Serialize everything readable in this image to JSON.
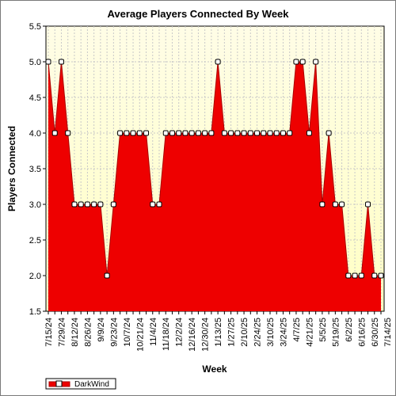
{
  "chart_data": {
    "type": "area",
    "title": "Average Players Connected By Week",
    "xlabel": "Week",
    "ylabel": "Players Connected",
    "ylim": [
      1.5,
      5.5
    ],
    "yticks": [
      "1.5",
      "2.0",
      "2.5",
      "3.0",
      "3.5",
      "4.0",
      "4.5",
      "5.0",
      "5.5"
    ],
    "grid": true,
    "legend_position": "bottom-left",
    "colors": {
      "fill": "#ee0000",
      "line": "#aa0000",
      "plot_bg_top": "#fffde0",
      "plot_bg_bottom": "#ffffcc",
      "grid": "#c8c8c8",
      "marker_fill": "#ffffff"
    },
    "x_labels": [
      "7/15/24",
      "7/29/24",
      "8/12/24",
      "8/26/24",
      "9/9/24",
      "9/23/24",
      "10/7/24",
      "10/21/24",
      "11/4/24",
      "11/18/24",
      "12/2/24",
      "12/16/24",
      "12/30/24",
      "1/13/25",
      "1/27/25",
      "2/10/25",
      "2/24/25",
      "3/10/25",
      "3/24/25",
      "4/7/25",
      "4/21/25",
      "5/5/25",
      "5/19/25",
      "6/2/25",
      "6/16/25",
      "6/30/25",
      "7/14/25"
    ],
    "series": [
      {
        "name": "DarkWind",
        "values": [
          5,
          4,
          5,
          4,
          3,
          3,
          3,
          3,
          3,
          2,
          3,
          4,
          4,
          4,
          4,
          4,
          3,
          3,
          4,
          4,
          4,
          4,
          4,
          4,
          4,
          4,
          5,
          4,
          4,
          4,
          4,
          4,
          4,
          4,
          4,
          4,
          4,
          4,
          5,
          5,
          4,
          5,
          3,
          4,
          3,
          3,
          2,
          2,
          2,
          3,
          2,
          2
        ]
      }
    ]
  }
}
